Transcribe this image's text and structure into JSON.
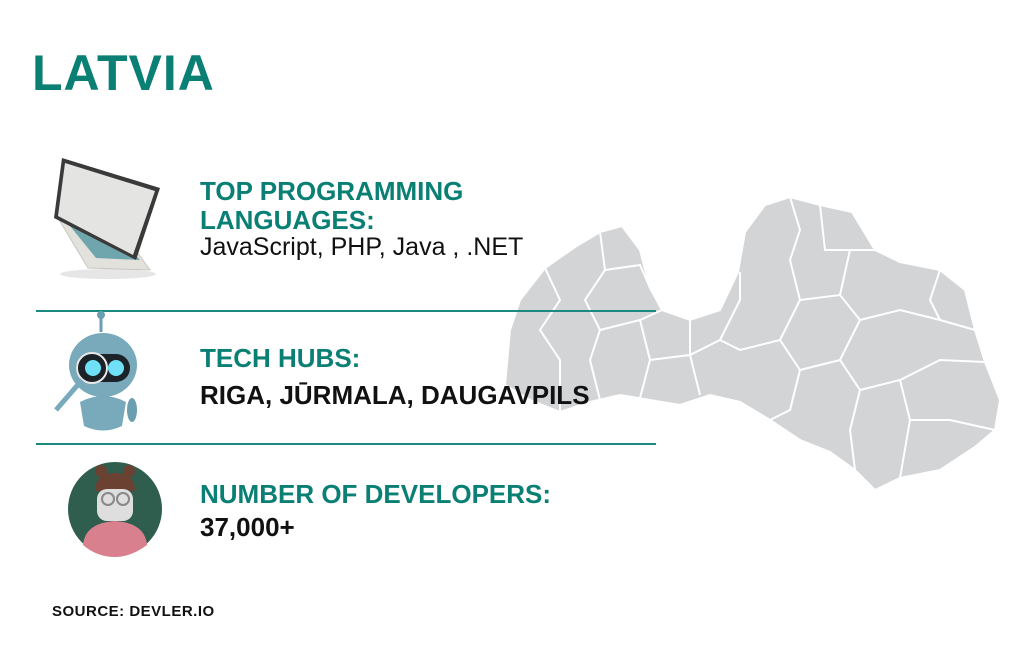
{
  "title": "LATVIA",
  "sections": [
    {
      "heading_line1": "TOP PROGRAMMING",
      "heading_line2": "LANGUAGES:",
      "value": "JavaScript, PHP, Java , .NET",
      "icon": "laptop-icon"
    },
    {
      "heading": "TECH HUBS:",
      "value": "RIGA, JŪRMALA, DAUGAVPILS",
      "icon": "robot-icon"
    },
    {
      "heading": "NUMBER OF DEVELOPERS:",
      "value": "37,000+",
      "icon": "developer-avatar-icon"
    }
  ],
  "source": "SOURCE: DEVLER.IO",
  "colors": {
    "accent": "#0a7f74",
    "map": "#d3d4d6",
    "text": "#111111"
  }
}
